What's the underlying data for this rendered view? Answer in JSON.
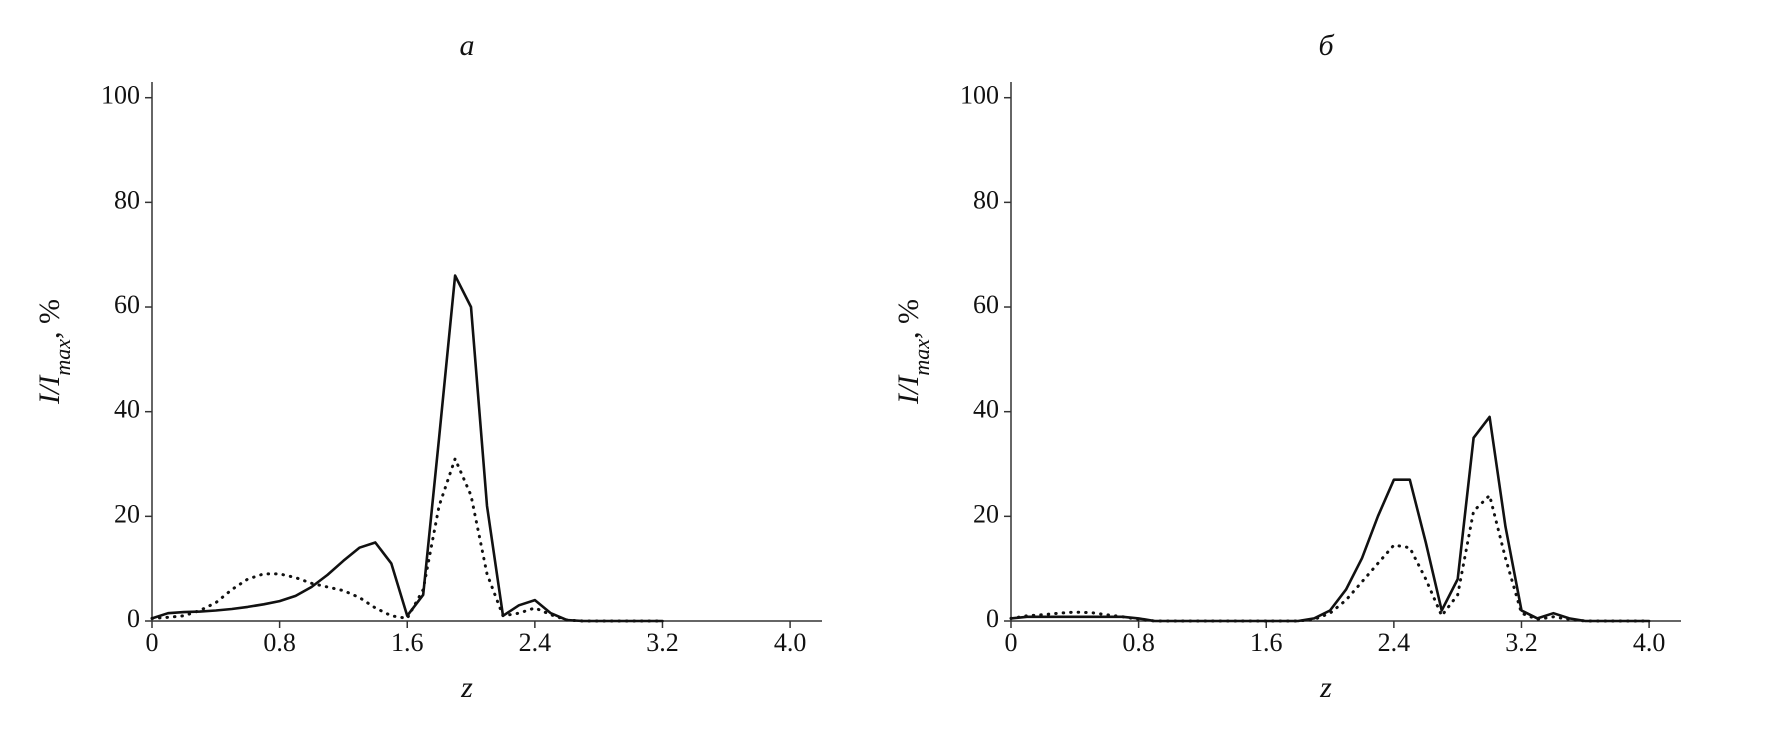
{
  "chart_data": [
    {
      "type": "line",
      "title": "а",
      "xlabel": "z",
      "ylabel": [
        "I/I",
        "max",
        ", %"
      ],
      "xlim": [
        0,
        4.2
      ],
      "ylim": [
        0,
        103
      ],
      "xticks": [
        0,
        0.8,
        1.6,
        2.4,
        3.2,
        {
          "value": 4,
          "label": "4.0"
        }
      ],
      "yticks": [
        0,
        20,
        40,
        60,
        80,
        100
      ],
      "x": [
        0,
        0.1,
        0.2,
        0.3,
        0.4,
        0.5,
        0.6,
        0.7,
        0.8,
        0.9,
        1.0,
        1.1,
        1.2,
        1.3,
        1.4,
        1.5,
        1.6,
        1.7,
        1.8,
        1.9,
        2.0,
        2.1,
        2.2,
        2.3,
        2.4,
        2.5,
        2.6,
        2.7,
        2.8,
        2.9,
        3.0,
        3.1,
        3.2
      ],
      "series": [
        {
          "color": "#111111",
          "style": "solid",
          "values": [
            0.5,
            1.5,
            1.7,
            1.8,
            2,
            2.3,
            2.7,
            3.2,
            3.8,
            4.8,
            6.5,
            8.8,
            11.5,
            14,
            15,
            11,
            1,
            5,
            35,
            66,
            60,
            22,
            1,
            3,
            4,
            1.5,
            0.2,
            0,
            0,
            0,
            0,
            0,
            0
          ]
        },
        {
          "color": "#111111",
          "style": "dotted",
          "values": [
            0.5,
            0.7,
            1,
            2,
            3.5,
            6,
            8,
            9,
            9,
            8.3,
            7.2,
            6.5,
            5.8,
            4.5,
            2.5,
            1,
            0.5,
            6,
            22,
            31,
            24,
            9,
            1,
            1.5,
            2.5,
            1.2,
            0.2,
            0,
            0,
            0,
            0,
            0,
            0
          ]
        }
      ]
    },
    {
      "type": "line",
      "title": "б",
      "xlabel": "z",
      "ylabel": [
        "I/I",
        "max",
        ", %"
      ],
      "xlim": [
        0,
        4.2
      ],
      "ylim": [
        0,
        103
      ],
      "xticks": [
        0,
        0.8,
        1.6,
        2.4,
        3.2,
        {
          "value": 4,
          "label": "4.0"
        }
      ],
      "yticks": [
        0,
        20,
        40,
        60,
        80,
        100
      ],
      "x": [
        0,
        0.1,
        0.2,
        0.3,
        0.4,
        0.5,
        0.6,
        0.7,
        0.8,
        0.9,
        1.0,
        1.1,
        1.2,
        1.3,
        1.4,
        1.5,
        1.6,
        1.7,
        1.8,
        1.9,
        2.0,
        2.1,
        2.2,
        2.3,
        2.4,
        2.5,
        2.6,
        2.7,
        2.8,
        2.9,
        3.0,
        3.1,
        3.2,
        3.3,
        3.4,
        3.5,
        3.6,
        3.7,
        3.8,
        3.9,
        4.0
      ],
      "series": [
        {
          "color": "#111111",
          "style": "solid",
          "values": [
            0.5,
            0.8,
            0.8,
            0.8,
            0.8,
            0.8,
            0.8,
            0.8,
            0.5,
            0,
            0,
            0,
            0,
            0,
            0,
            0,
            0,
            0,
            0,
            0.5,
            2,
            6,
            12,
            20,
            27,
            27,
            15,
            2,
            8,
            35,
            39,
            18,
            2,
            0.5,
            1.5,
            0.5,
            0,
            0,
            0,
            0,
            0
          ]
        },
        {
          "color": "#111111",
          "style": "dotted",
          "values": [
            0.5,
            1,
            1.2,
            1.5,
            1.7,
            1.6,
            1.2,
            0.8,
            0.3,
            0,
            0,
            0,
            0,
            0,
            0,
            0,
            0,
            0,
            0,
            0.3,
            1.5,
            4,
            7.5,
            11,
            14.5,
            14,
            8,
            1,
            5,
            21,
            24,
            12,
            1.5,
            0.3,
            0.8,
            0.3,
            0,
            0,
            0,
            0,
            0
          ]
        }
      ]
    }
  ]
}
